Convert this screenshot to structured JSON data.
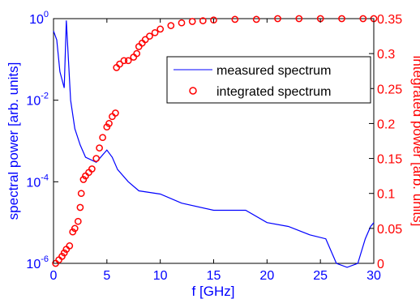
{
  "chart_data": {
    "type": "line",
    "xlabel": "f [GHz]",
    "ylabel_left": "spectral power [arb. units]",
    "ylabel_right": "integrated power [arb. units]",
    "xlim": [
      0,
      30
    ],
    "ylim_left": [
      1e-06,
      1
    ],
    "yscale_left": "log",
    "ylim_right": [
      0,
      0.35
    ],
    "x_ticks": [
      "0",
      "5",
      "10",
      "15",
      "20",
      "25",
      "30"
    ],
    "y_left_ticks": [
      {
        "value": 1e-06,
        "base": "10",
        "exp": "-6"
      },
      {
        "value": 0.0001,
        "base": "10",
        "exp": "-4"
      },
      {
        "value": 0.01,
        "base": "10",
        "exp": "-2"
      },
      {
        "value": 1,
        "base": "10",
        "exp": "0"
      }
    ],
    "y_right_ticks": [
      "0",
      "0.05",
      "0.1",
      "0.15",
      "0.2",
      "0.25",
      "0.3",
      "0.35"
    ],
    "grid": false,
    "legend_position": "top-right",
    "colors": {
      "left_axis": "#0000ff",
      "right_axis": "#ff0000",
      "measured": "#0000ff",
      "integrated": "#ff0000"
    },
    "series": [
      {
        "name": "measured spectrum",
        "axis": "left",
        "style": "line",
        "x": [
          0,
          0.3,
          0.6,
          1.0,
          1.2,
          1.6,
          2.0,
          2.5,
          3.0,
          4.0,
          5.0,
          5.5,
          6.0,
          7.0,
          8.0,
          10.0,
          12.0,
          15.0,
          18.0,
          20.0,
          22.0,
          24.0,
          25.5,
          26.5,
          27.5,
          28.5,
          29.2,
          29.7,
          30.0
        ],
        "values": [
          0.5,
          0.3,
          0.05,
          0.02,
          0.9,
          0.01,
          0.002,
          0.0008,
          0.0004,
          0.0003,
          0.0006,
          0.0004,
          0.0002,
          0.0001,
          6e-05,
          5e-05,
          3e-05,
          2e-05,
          2e-05,
          1e-05,
          8e-06,
          5e-06,
          4e-06,
          1e-06,
          8e-07,
          1e-06,
          4e-06,
          8e-06,
          1e-05
        ]
      },
      {
        "name": "integrated spectrum",
        "axis": "right",
        "style": "markers",
        "x": [
          0.2,
          0.5,
          0.8,
          1.0,
          1.2,
          1.5,
          1.8,
          2.0,
          2.3,
          2.5,
          2.6,
          2.8,
          3.0,
          3.3,
          3.6,
          4.0,
          4.3,
          4.6,
          5.0,
          5.2,
          5.5,
          5.8,
          5.9,
          6.2,
          6.6,
          7.0,
          7.5,
          7.8,
          8.0,
          8.3,
          8.6,
          9.0,
          9.5,
          10.0,
          11.0,
          12.0,
          13.0,
          14.0,
          15.0,
          17.0,
          19.0,
          21.0,
          23.0,
          25.0,
          27.0,
          29.0,
          30.0
        ],
        "values": [
          0.0,
          0.005,
          0.01,
          0.015,
          0.02,
          0.025,
          0.045,
          0.05,
          0.06,
          0.08,
          0.1,
          0.12,
          0.125,
          0.13,
          0.135,
          0.15,
          0.165,
          0.18,
          0.195,
          0.2,
          0.21,
          0.215,
          0.28,
          0.285,
          0.29,
          0.29,
          0.295,
          0.3,
          0.31,
          0.315,
          0.32,
          0.325,
          0.33,
          0.335,
          0.34,
          0.344,
          0.346,
          0.347,
          0.348,
          0.349,
          0.349,
          0.35,
          0.35,
          0.35,
          0.35,
          0.35,
          0.35
        ]
      }
    ]
  }
}
